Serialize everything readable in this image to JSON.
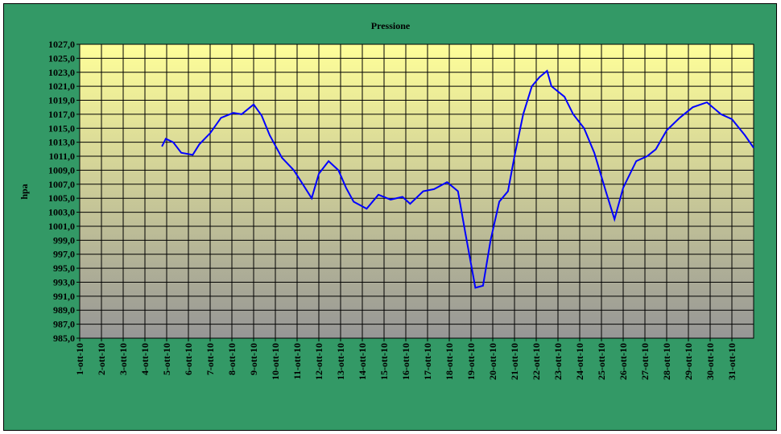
{
  "chart_data": {
    "type": "line",
    "title": "Pressione",
    "y_label": "hpa",
    "xlim": [
      1,
      32
    ],
    "xticks": [
      {
        "value": 1,
        "label": "1-ott-10"
      },
      {
        "value": 2,
        "label": "2-ott-10"
      },
      {
        "value": 3,
        "label": "3-ott-10"
      },
      {
        "value": 4,
        "label": "4-ott-10"
      },
      {
        "value": 5,
        "label": "5-ott-10"
      },
      {
        "value": 6,
        "label": "6-ott-10"
      },
      {
        "value": 7,
        "label": "7-ott-10"
      },
      {
        "value": 8,
        "label": "8-ott-10"
      },
      {
        "value": 9,
        "label": "9-ott-10"
      },
      {
        "value": 10,
        "label": "10-ott-10"
      },
      {
        "value": 11,
        "label": "11-ott-10"
      },
      {
        "value": 12,
        "label": "12-ott-10"
      },
      {
        "value": 13,
        "label": "13-ott-10"
      },
      {
        "value": 14,
        "label": "14-ott-10"
      },
      {
        "value": 15,
        "label": "15-ott-10"
      },
      {
        "value": 16,
        "label": "16-ott-10"
      },
      {
        "value": 17,
        "label": "17-ott-10"
      },
      {
        "value": 18,
        "label": "18-ott-10"
      },
      {
        "value": 19,
        "label": "19-ott-10"
      },
      {
        "value": 20,
        "label": "20-ott-10"
      },
      {
        "value": 21,
        "label": "21-ott-10"
      },
      {
        "value": 22,
        "label": "22-ott-10"
      },
      {
        "value": 23,
        "label": "23-ott-10"
      },
      {
        "value": 24,
        "label": "24-ott-10"
      },
      {
        "value": 25,
        "label": "25-ott-10"
      },
      {
        "value": 26,
        "label": "26-ott-10"
      },
      {
        "value": 27,
        "label": "27-ott-10"
      },
      {
        "value": 28,
        "label": "28-ott-10"
      },
      {
        "value": 29,
        "label": "29-ott-10"
      },
      {
        "value": 30,
        "label": "30-ott-10"
      },
      {
        "value": 31,
        "label": "31-ott-10"
      }
    ],
    "ylim": [
      985,
      1027
    ],
    "yticks": [
      {
        "value": 985,
        "label": "985,0"
      },
      {
        "value": 987,
        "label": "987,0"
      },
      {
        "value": 989,
        "label": "989,0"
      },
      {
        "value": 991,
        "label": "991,0"
      },
      {
        "value": 993,
        "label": "993,0"
      },
      {
        "value": 995,
        "label": "995,0"
      },
      {
        "value": 997,
        "label": "997,0"
      },
      {
        "value": 999,
        "label": "999,0"
      },
      {
        "value": 1001,
        "label": "1001,0"
      },
      {
        "value": 1003,
        "label": "1003,0"
      },
      {
        "value": 1005,
        "label": "1005,0"
      },
      {
        "value": 1007,
        "label": "1007,0"
      },
      {
        "value": 1009,
        "label": "1009,0"
      },
      {
        "value": 1011,
        "label": "1011,0"
      },
      {
        "value": 1013,
        "label": "1013,0"
      },
      {
        "value": 1015,
        "label": "1015,0"
      },
      {
        "value": 1017,
        "label": "1017,0"
      },
      {
        "value": 1019,
        "label": "1019,0"
      },
      {
        "value": 1021,
        "label": "1021,0"
      },
      {
        "value": 1023,
        "label": "1023,0"
      },
      {
        "value": 1025,
        "label": "1025,0"
      },
      {
        "value": 1027,
        "label": "1027,0"
      }
    ],
    "grid": true,
    "x": [
      4.78,
      4.96,
      5.3,
      5.67,
      6.2,
      6.5,
      7.0,
      7.5,
      8.07,
      8.45,
      9.0,
      9.37,
      9.74,
      10.3,
      10.85,
      11.2,
      11.67,
      12.0,
      12.45,
      12.9,
      13.25,
      13.6,
      14.2,
      14.74,
      15.3,
      15.85,
      16.2,
      16.8,
      17.3,
      17.9,
      18.4,
      18.74,
      19.2,
      19.55,
      19.9,
      20.3,
      20.7,
      21.0,
      21.4,
      21.8,
      22.15,
      22.5,
      22.7,
      23.3,
      23.7,
      24.2,
      24.67,
      25.2,
      25.6,
      26.0,
      26.6,
      27.1,
      27.5,
      28.0,
      28.6,
      29.2,
      29.85,
      30.5,
      31.0,
      31.6,
      32.0
    ],
    "series": [
      {
        "name": "Pressione",
        "color": "#0000ff",
        "values": [
          1012.4,
          1013.5,
          1013,
          1011.5,
          1011.2,
          1012.7,
          1014.3,
          1016.5,
          1017.2,
          1017,
          1018.4,
          1016.8,
          1014,
          1010.8,
          1009,
          1007.3,
          1005,
          1008.5,
          1010.3,
          1009,
          1006.5,
          1004.5,
          1003.5,
          1005.5,
          1004.8,
          1005.2,
          1004.2,
          1006,
          1006.3,
          1007.3,
          1006,
          1000,
          992.2,
          992.5,
          999,
          1004.5,
          1006,
          1011,
          1017,
          1021,
          1022.3,
          1023.2,
          1021,
          1019.5,
          1017,
          1015,
          1011.5,
          1006,
          1002,
          1006.5,
          1010.3,
          1011,
          1012,
          1014.7,
          1016.5,
          1018,
          1018.7,
          1017,
          1016.3,
          1014,
          1012.2
        ]
      }
    ]
  }
}
